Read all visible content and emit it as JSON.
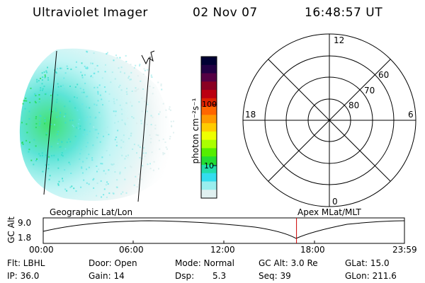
{
  "header": {
    "instrument": "Ultraviolet Imager",
    "date": "02 Nov 07",
    "time": "16:48:57 UT"
  },
  "colorbar": {
    "label": "photon cm⁻²s⁻¹",
    "ticks": [
      "100",
      "10"
    ],
    "scale": "log",
    "colors": [
      "#000033",
      "#220044",
      "#550044",
      "#8a0022",
      "#bb0011",
      "#dd2200",
      "#ff6600",
      "#ff9900",
      "#ffcc00",
      "#eeff00",
      "#aaff00",
      "#55ee00",
      "#22dd33",
      "#22ddaa",
      "#33ddee",
      "#99eeee",
      "#e0f0f0"
    ]
  },
  "polar": {
    "mlt_labels": [
      "12",
      "18",
      "6",
      "0"
    ],
    "lat_labels": [
      "60",
      "70",
      "80"
    ]
  },
  "timeline": {
    "axis_label": "GC Alt",
    "left_caption": "Geographic Lat/Lon",
    "right_caption": "Apex MLat/MLT",
    "y_ticks": [
      "9.0",
      "1.8"
    ],
    "x_ticks": [
      "00:00",
      "06:00",
      "12:00",
      "18:00",
      "23:59"
    ],
    "marker_time": "16:48:57",
    "marker_color": "#cc0000"
  },
  "info": {
    "flt": "Flt: LBHL",
    "ip": "IP: 36.0",
    "door": "Door: Open",
    "gain": "Gain: 14",
    "mode": "Mode: Normal",
    "dsp_label": "Dsp:",
    "dsp_value": "5.3",
    "gcalt": "GC Alt: 3.0 Re",
    "seq": "Seq: 39",
    "glat": "GLat: 15.0",
    "glon": "GLon: 211.6"
  }
}
